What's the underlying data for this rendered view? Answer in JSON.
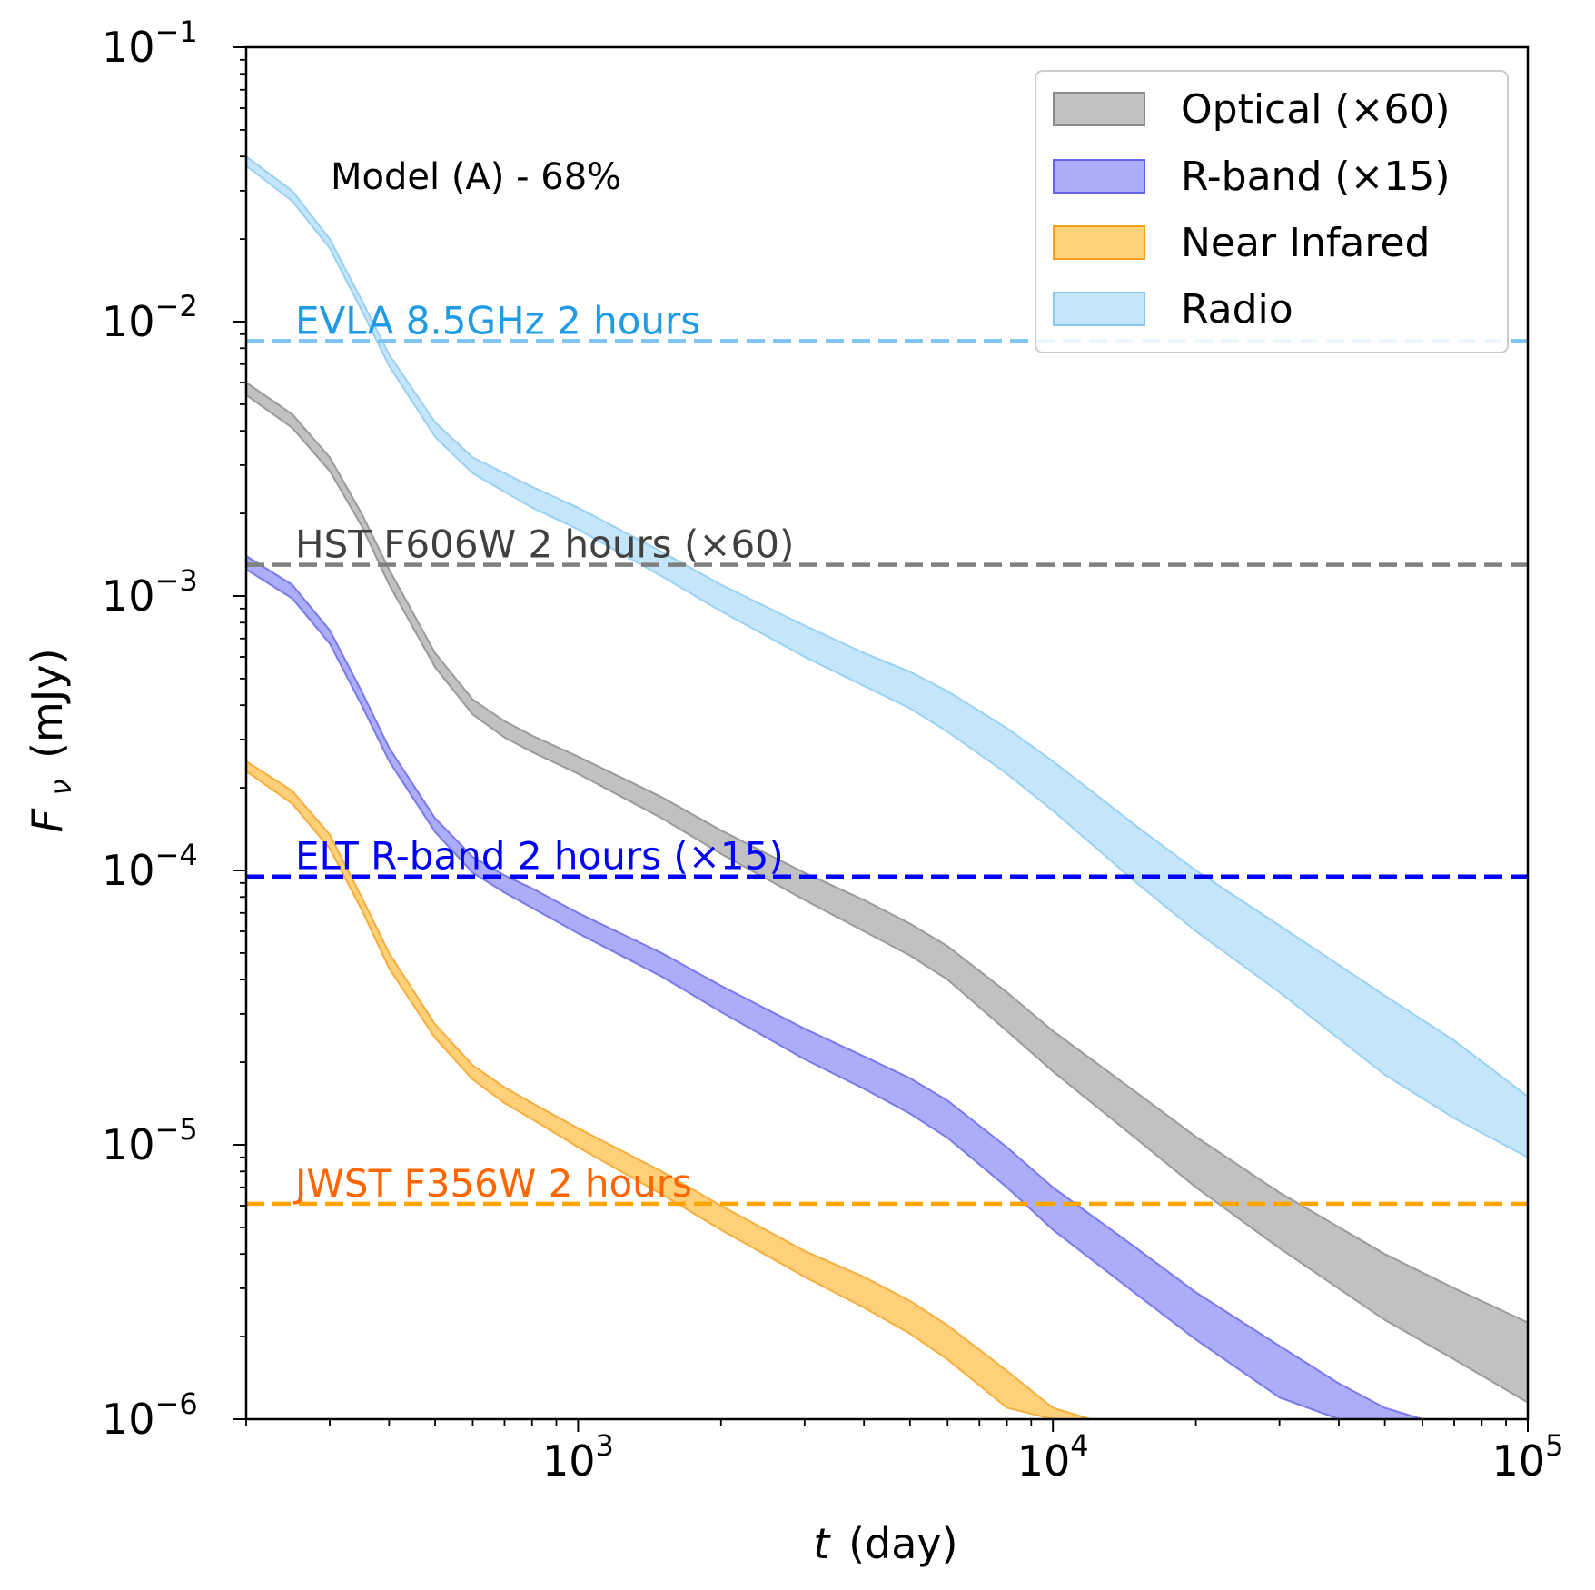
{
  "chart_data": {
    "type": "area",
    "title": "Model (A) - 68%",
    "xlabel": {
      "symbol": "t",
      "unit": "(day)"
    },
    "ylabel": {
      "symbol": "F",
      "subscript": "ν",
      "unit": "(mJy)"
    },
    "xscale": "log",
    "yscale": "log",
    "xlim": [
      200,
      100000
    ],
    "ylim": [
      1e-06,
      0.1
    ],
    "x_ticks": [
      {
        "value": 1000,
        "base": "10",
        "exp": "3"
      },
      {
        "value": 10000,
        "base": "10",
        "exp": "4"
      },
      {
        "value": 100000,
        "base": "10",
        "exp": "5"
      }
    ],
    "y_ticks": [
      {
        "value": 1e-06,
        "base": "10",
        "exp": "−6"
      },
      {
        "value": 1e-05,
        "base": "10",
        "exp": "−5"
      },
      {
        "value": 0.0001,
        "base": "10",
        "exp": "−4"
      },
      {
        "value": 0.001,
        "base": "10",
        "exp": "−3"
      },
      {
        "value": 0.01,
        "base": "10",
        "exp": "−2"
      },
      {
        "value": 0.1,
        "base": "10",
        "exp": "−1"
      }
    ],
    "legend_position": "top-right",
    "series": [
      {
        "name": "Optical (×60)",
        "color": "#a0a0a0",
        "edge": "#8a8a8a",
        "x": [
          200,
          250,
          300,
          350,
          400,
          500,
          600,
          700,
          800,
          1000,
          1500,
          2000,
          3000,
          4000,
          5000,
          6000,
          8000,
          10000,
          15000,
          20000,
          30000,
          50000,
          70000,
          100000
        ],
        "upper": [
          0.006,
          0.0046,
          0.0032,
          0.002,
          0.00125,
          0.00062,
          0.00042,
          0.00035,
          0.00031,
          0.00026,
          0.000185,
          0.00014,
          9.8e-05,
          7.8e-05,
          6.4e-05,
          5.3e-05,
          3.6e-05,
          2.6e-05,
          1.55e-05,
          1.07e-05,
          6.7e-06,
          4e-06,
          3e-06,
          2.25e-06
        ],
        "lower": [
          0.0054,
          0.0041,
          0.00285,
          0.0018,
          0.0011,
          0.00055,
          0.00037,
          0.000305,
          0.00027,
          0.000225,
          0.000155,
          0.000115,
          7.8e-05,
          6e-05,
          4.9e-05,
          4e-05,
          2.6e-05,
          1.85e-05,
          1.05e-05,
          7e-06,
          4.2e-06,
          2.3e-06,
          1.65e-06,
          1.15e-06
        ]
      },
      {
        "name": "R-band (×15)",
        "color": "#8080f4",
        "edge": "#6464e6",
        "x": [
          200,
          250,
          300,
          350,
          400,
          500,
          600,
          700,
          800,
          1000,
          1500,
          2000,
          3000,
          4000,
          5000,
          6000,
          8000,
          10000,
          15000,
          20000,
          30000,
          40000,
          50000,
          60000
        ],
        "upper": [
          0.0014,
          0.0011,
          0.00075,
          0.00045,
          0.00028,
          0.000155,
          0.000112,
          9.6e-05,
          8.6e-05,
          7e-05,
          5e-05,
          3.8e-05,
          2.65e-05,
          2.1e-05,
          1.75e-05,
          1.45e-05,
          9.8e-06,
          7e-06,
          4.2e-06,
          2.9e-06,
          1.85e-06,
          1.35e-06,
          1.1e-06,
          1e-06
        ],
        "lower": [
          0.00125,
          0.00098,
          0.00067,
          0.0004,
          0.00025,
          0.000138,
          9.8e-05,
          8.3e-05,
          7.3e-05,
          5.9e-05,
          4.1e-05,
          3.05e-05,
          2.05e-05,
          1.6e-05,
          1.3e-05,
          1.06e-05,
          7e-06,
          4.9e-06,
          2.85e-06,
          1.95e-06,
          1.2e-06,
          1e-06,
          1e-06,
          1e-06
        ]
      },
      {
        "name": "Near Infared",
        "color": "#ffb733",
        "edge": "#f2a020",
        "x": [
          200,
          250,
          300,
          350,
          400,
          500,
          600,
          700,
          800,
          1000,
          1500,
          2000,
          3000,
          4000,
          5000,
          6000,
          8000,
          10000,
          12000,
          15000
        ],
        "upper": [
          0.00025,
          0.000195,
          0.000135,
          8e-05,
          5e-05,
          2.75e-05,
          1.95e-05,
          1.62e-05,
          1.42e-05,
          1.15e-05,
          8e-06,
          6e-06,
          4.1e-06,
          3.3e-06,
          2.7e-06,
          2.2e-06,
          1.5e-06,
          1.1e-06,
          1e-06,
          1e-06
        ],
        "lower": [
          0.00023,
          0.000175,
          0.00012,
          7.2e-05,
          4.4e-05,
          2.45e-05,
          1.73e-05,
          1.42e-05,
          1.24e-05,
          9.8e-06,
          6.6e-06,
          4.9e-06,
          3.3e-06,
          2.55e-06,
          2.05e-06,
          1.65e-06,
          1.1e-06,
          1e-06,
          1e-06,
          1e-06
        ]
      },
      {
        "name": "Radio",
        "color": "#a6d8f8",
        "edge": "#8ac8f0",
        "x": [
          200,
          250,
          300,
          350,
          400,
          500,
          600,
          800,
          1000,
          1500,
          2000,
          3000,
          4000,
          5000,
          6000,
          8000,
          10000,
          15000,
          20000,
          30000,
          50000,
          70000,
          100000
        ],
        "upper": [
          0.04,
          0.03,
          0.02,
          0.012,
          0.0076,
          0.0043,
          0.0032,
          0.0025,
          0.0021,
          0.00145,
          0.0011,
          0.00078,
          0.00062,
          0.00053,
          0.00045,
          0.00033,
          0.00025,
          0.000145,
          0.0001,
          6.3e-05,
          3.5e-05,
          2.4e-05,
          1.5e-05
        ],
        "lower": [
          0.037,
          0.0275,
          0.0185,
          0.011,
          0.0069,
          0.0038,
          0.0028,
          0.0021,
          0.00175,
          0.00118,
          0.00088,
          0.0006,
          0.00047,
          0.00039,
          0.00032,
          0.000225,
          0.000165,
          9e-05,
          6e-05,
          3.6e-05,
          1.8e-05,
          1.25e-05,
          9e-06
        ]
      }
    ],
    "thresholds": [
      {
        "label": "EVLA 8.5GHz 2 hours",
        "value": 0.0085,
        "line_color": "#7cc5f2",
        "text_color": "#1f9be6"
      },
      {
        "label": "HST F606W 2 hours (×60)",
        "value": 0.0013,
        "line_color": "#808080",
        "text_color": "#404040"
      },
      {
        "label": "ELT R-band 2 hours (×15)",
        "value": 9.5e-05,
        "line_color": "#0000ff",
        "text_color": "#0000ff"
      },
      {
        "label": "JWST F356W 2 hours",
        "value": 6.1e-06,
        "line_color": "#ffa500",
        "text_color": "#ff6600"
      }
    ]
  }
}
